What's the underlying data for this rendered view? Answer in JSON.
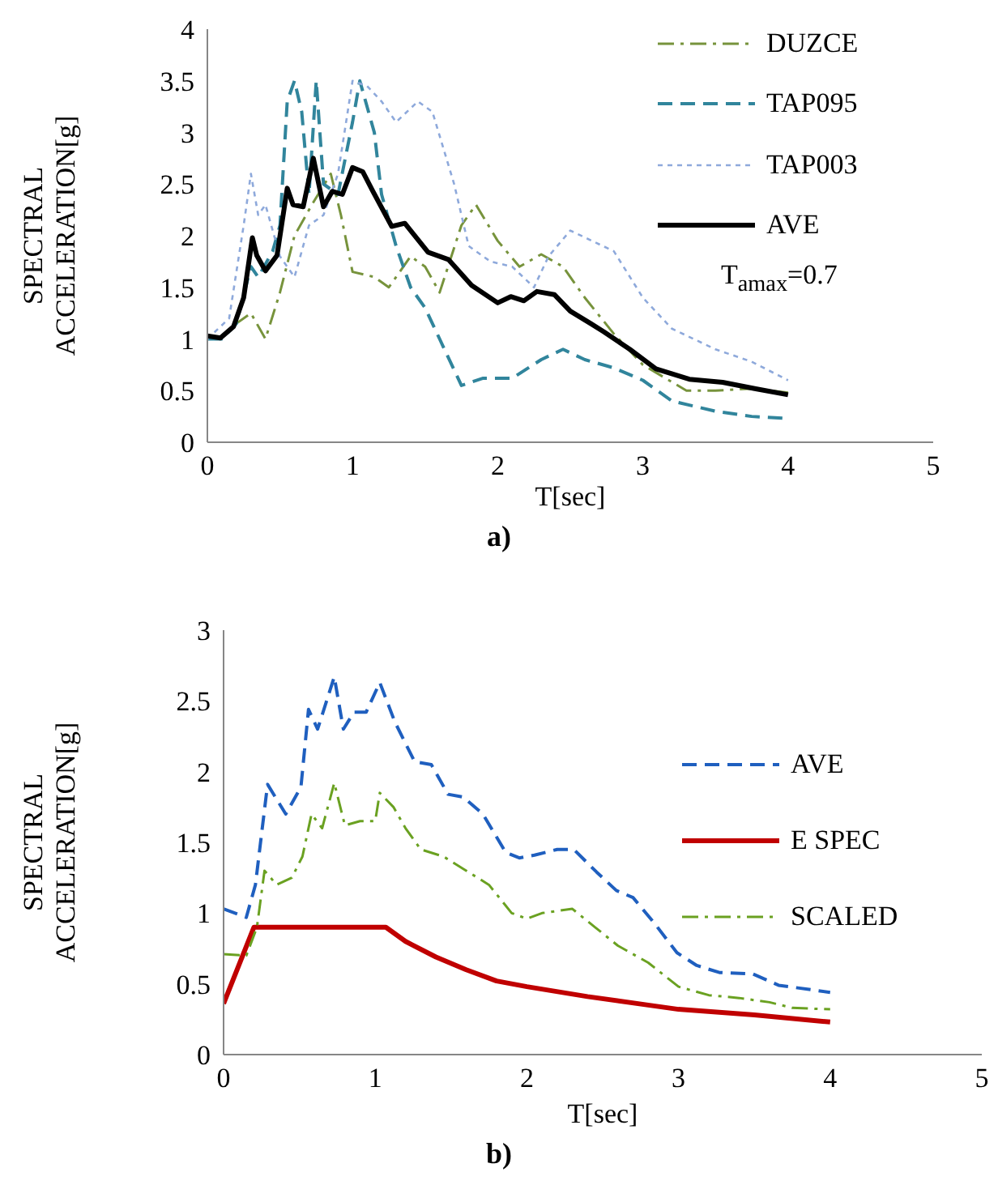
{
  "chart_data": [
    {
      "type": "line",
      "xlabel": "T[sec]",
      "ylabel": "SPECTRAL ACCELERATION[g]",
      "xlim": [
        0,
        5
      ],
      "xticks": [
        0,
        1,
        2,
        3,
        4,
        5
      ],
      "ylim": [
        0,
        4
      ],
      "yticks": [
        0,
        0.5,
        1,
        1.5,
        2,
        2.5,
        3,
        3.5,
        4
      ],
      "legend": "top right",
      "annotations": [
        "T$_{amax}$=0.7",
        "a)"
      ],
      "series": [
        {
          "name": "DUZCE",
          "color": "#77933c",
          "line_style": "dashdot",
          "x": [
            0,
            0.1,
            0.2,
            0.3,
            0.4,
            0.5,
            0.6,
            0.72,
            0.85,
            0.92,
            1.0,
            1.15,
            1.25,
            1.4,
            1.5,
            1.6,
            1.75,
            1.85,
            2.0,
            2.15,
            2.3,
            2.45,
            2.6,
            2.8,
            3.0,
            3.3,
            3.5,
            3.75,
            4
          ],
          "values": [
            1.0,
            1.02,
            1.15,
            1.25,
            1.0,
            1.45,
            2.0,
            2.3,
            2.6,
            2.2,
            1.65,
            1.6,
            1.5,
            1.8,
            1.7,
            1.45,
            2.1,
            2.3,
            1.95,
            1.7,
            1.82,
            1.7,
            1.4,
            1.05,
            0.75,
            0.5,
            0.5,
            0.52,
            0.48
          ]
        },
        {
          "name": "TAP095",
          "color": "#31859c",
          "line_style": "dashed",
          "x": [
            0,
            0.1,
            0.2,
            0.3,
            0.35,
            0.45,
            0.5,
            0.55,
            0.6,
            0.65,
            0.7,
            0.75,
            0.8,
            0.9,
            1.0,
            1.05,
            1.15,
            1.2,
            1.3,
            1.4,
            1.5,
            1.6,
            1.75,
            1.9,
            2.1,
            2.3,
            2.45,
            2.6,
            2.8,
            3.0,
            3.2,
            3.5,
            3.75,
            4
          ],
          "values": [
            1.0,
            1.0,
            1.15,
            1.7,
            1.6,
            1.85,
            2.1,
            3.3,
            3.5,
            3.2,
            2.4,
            3.5,
            2.5,
            2.4,
            3.1,
            3.5,
            3.0,
            2.4,
            1.9,
            1.5,
            1.3,
            1.0,
            0.55,
            0.62,
            0.62,
            0.8,
            0.9,
            0.8,
            0.72,
            0.6,
            0.4,
            0.3,
            0.25,
            0.23
          ]
        },
        {
          "name": "TAP003",
          "color": "#8ea9db",
          "line_style": "dotted",
          "x": [
            0,
            0.15,
            0.25,
            0.3,
            0.35,
            0.4,
            0.45,
            0.5,
            0.6,
            0.7,
            0.8,
            0.9,
            1.0,
            1.1,
            1.2,
            1.3,
            1.45,
            1.55,
            1.7,
            1.8,
            1.95,
            2.1,
            2.25,
            2.35,
            2.5,
            2.65,
            2.8,
            3.0,
            3.2,
            3.5,
            3.75,
            4
          ],
          "values": [
            1.0,
            1.2,
            2.1,
            2.6,
            2.2,
            2.3,
            2.05,
            1.8,
            1.6,
            2.1,
            2.2,
            2.6,
            3.5,
            3.45,
            3.3,
            3.1,
            3.3,
            3.2,
            2.5,
            1.9,
            1.75,
            1.7,
            1.5,
            1.8,
            2.05,
            1.95,
            1.85,
            1.4,
            1.1,
            0.9,
            0.78,
            0.6
          ]
        },
        {
          "name": "AVE",
          "color": "#000000",
          "line_style": "solid",
          "x": [
            0,
            0.09,
            0.18,
            0.25,
            0.31,
            0.34,
            0.4,
            0.48,
            0.55,
            0.59,
            0.66,
            0.73,
            0.8,
            0.86,
            0.93,
            1.0,
            1.07,
            1.14,
            1.27,
            1.36,
            1.52,
            1.66,
            1.82,
            2.0,
            2.09,
            2.18,
            2.27,
            2.39,
            2.5,
            2.64,
            2.73,
            2.91,
            3.09,
            3.32,
            3.55,
            3.77,
            4
          ],
          "values": [
            1.03,
            1.01,
            1.12,
            1.4,
            1.98,
            1.81,
            1.66,
            1.81,
            2.46,
            2.3,
            2.28,
            2.75,
            2.28,
            2.43,
            2.4,
            2.66,
            2.62,
            2.43,
            2.09,
            2.12,
            1.84,
            1.77,
            1.52,
            1.35,
            1.41,
            1.37,
            1.46,
            1.43,
            1.27,
            1.15,
            1.07,
            0.9,
            0.71,
            0.61,
            0.58,
            0.52,
            0.46
          ]
        }
      ]
    },
    {
      "type": "line",
      "xlabel": "T[sec]",
      "ylabel": "SPECTRAL ACCELERATION[g]",
      "xlim": [
        0,
        5
      ],
      "xticks": [
        0,
        1,
        2,
        3,
        4,
        5
      ],
      "ylim": [
        0,
        3
      ],
      "yticks": [
        0,
        0.5,
        1,
        1.5,
        2,
        2.5,
        3
      ],
      "legend": "right",
      "annotations": [
        "b)"
      ],
      "series": [
        {
          "name": "AVE",
          "color": "#1f5fbf",
          "line_style": "dashed",
          "x": [
            0,
            0.15,
            0.21,
            0.29,
            0.41,
            0.51,
            0.56,
            0.62,
            0.73,
            0.79,
            0.86,
            0.94,
            1.03,
            1.13,
            1.26,
            1.37,
            1.48,
            1.58,
            1.71,
            1.86,
            1.95,
            2.05,
            2.2,
            2.31,
            2.46,
            2.59,
            2.7,
            2.84,
            2.99,
            3.12,
            3.27,
            3.49,
            3.66,
            4
          ],
          "values": [
            1.03,
            0.97,
            1.2,
            1.91,
            1.7,
            1.89,
            2.44,
            2.3,
            2.67,
            2.3,
            2.42,
            2.42,
            2.63,
            2.35,
            2.07,
            2.05,
            1.84,
            1.82,
            1.7,
            1.43,
            1.39,
            1.41,
            1.45,
            1.45,
            1.29,
            1.16,
            1.11,
            0.93,
            0.72,
            0.63,
            0.58,
            0.57,
            0.49,
            0.44
          ]
        },
        {
          "name": "E SPEC",
          "color": "#c00000",
          "line_style": "solid",
          "x": [
            0,
            0.2,
            1.07,
            1.2,
            1.4,
            1.6,
            1.8,
            2.0,
            2.4,
            2.8,
            3.0,
            3.5,
            4.0
          ],
          "values": [
            0.36,
            0.9,
            0.9,
            0.8,
            0.69,
            0.6,
            0.52,
            0.48,
            0.41,
            0.35,
            0.32,
            0.28,
            0.23
          ]
        },
        {
          "name": "SCALED",
          "color": "#6aa121",
          "line_style": "dashdot",
          "x": [
            0,
            0.15,
            0.22,
            0.27,
            0.35,
            0.45,
            0.52,
            0.58,
            0.65,
            0.73,
            0.8,
            0.9,
            1.0,
            1.03,
            1.12,
            1.2,
            1.3,
            1.45,
            1.6,
            1.75,
            1.9,
            2.0,
            2.1,
            2.3,
            2.45,
            2.6,
            2.8,
            3.0,
            3.2,
            3.4,
            3.6,
            3.75,
            4
          ],
          "values": [
            0.71,
            0.7,
            0.9,
            1.3,
            1.2,
            1.25,
            1.4,
            1.7,
            1.6,
            1.92,
            1.62,
            1.65,
            1.65,
            1.85,
            1.75,
            1.6,
            1.45,
            1.4,
            1.3,
            1.2,
            1.0,
            0.96,
            1.0,
            1.03,
            0.9,
            0.77,
            0.65,
            0.48,
            0.42,
            0.4,
            0.37,
            0.33,
            0.32
          ]
        }
      ]
    }
  ]
}
